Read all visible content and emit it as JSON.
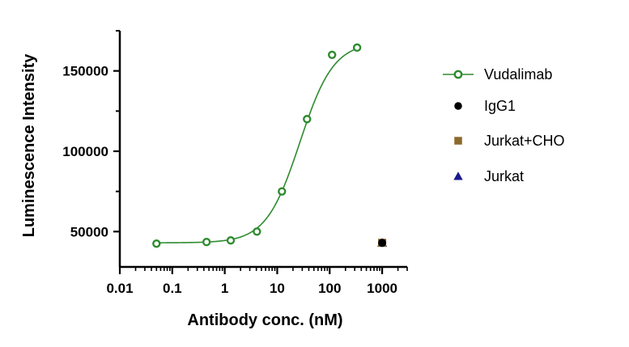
{
  "chart_data": {
    "type": "scatter",
    "xlabel": "Antibody conc. (nM)",
    "ylabel": "Luminescence Intensity",
    "x_scale": "log",
    "xlim": [
      0.01,
      3000
    ],
    "ylim": [
      28000,
      175000
    ],
    "x_ticks": [
      0.01,
      0.1,
      1,
      10,
      100,
      1000
    ],
    "x_tick_labels": [
      "0.01",
      "0.1",
      "1",
      "10",
      "100",
      "1000"
    ],
    "y_ticks": [
      50000,
      100000,
      150000
    ],
    "y_tick_labels": [
      "50000",
      "100000",
      "150000"
    ],
    "grid": false,
    "legend_position": "right",
    "series": [
      {
        "name": "Vudalimab",
        "marker": "open-circle",
        "color": "#2e8b2e",
        "fit_curve": true,
        "x": [
          0.05,
          0.45,
          1.3,
          4.1,
          12.3,
          37,
          111,
          333
        ],
        "y": [
          42500,
          43500,
          44500,
          50000,
          75000,
          120000,
          160000,
          164500
        ]
      },
      {
        "name": "IgG1",
        "marker": "filled-circle",
        "color": "#000000",
        "x": [
          1000
        ],
        "y": [
          43000
        ]
      },
      {
        "name": "Jurkat+CHO",
        "marker": "filled-square",
        "color": "#8b6a2b",
        "x": [
          1000
        ],
        "y": [
          43000
        ]
      },
      {
        "name": "Jurkat",
        "marker": "filled-triangle",
        "color": "#1a1a8c",
        "x": [
          1000
        ],
        "y": [
          43000
        ]
      }
    ],
    "fit": {
      "bottom": 43000,
      "top": 168000,
      "ec50": 27,
      "hill": 1.35
    }
  }
}
